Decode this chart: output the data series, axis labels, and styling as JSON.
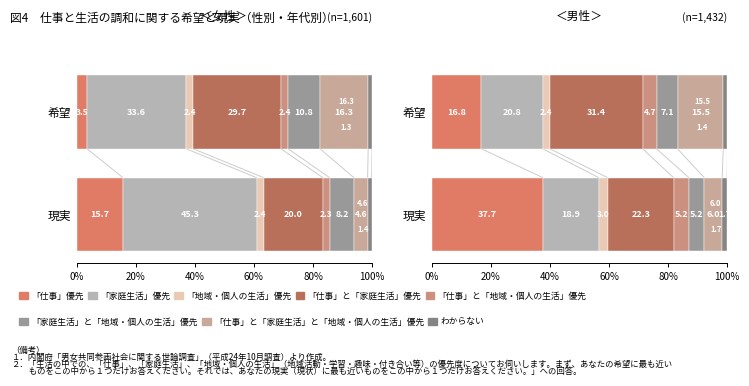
{
  "title": "図4　仕事と生活の調和に関する希望と現実（性別・年代別）",
  "female_title": "＜女性＞",
  "male_title": "＜男性＞",
  "female_n": "(n=1,601)",
  "male_n": "(n=1,432)",
  "rows": [
    "希望",
    "現実"
  ],
  "female_hope": [
    3.5,
    33.6,
    2.4,
    29.7,
    2.4,
    10.8,
    16.3,
    1.3
  ],
  "female_real": [
    15.7,
    45.3,
    2.4,
    20.0,
    2.3,
    8.2,
    4.6,
    1.4
  ],
  "male_hope": [
    16.8,
    20.8,
    2.4,
    31.4,
    4.7,
    7.1,
    15.5,
    1.4
  ],
  "male_real": [
    37.7,
    18.9,
    3.0,
    22.3,
    5.2,
    5.2,
    6.0,
    1.7
  ],
  "colors": [
    "#E07B65",
    "#B5B5B5",
    "#EAC9B5",
    "#B8705A",
    "#CC9080",
    "#999999",
    "#C8A898",
    "#858585"
  ],
  "legend_labels": [
    "「仕事」優先",
    "「家庭生活」優先",
    "「地域・個人の生活」優先",
    "「仕事」と「家庭生活」優先",
    "「仕事」と「地域・個人の生活」優先",
    "「家庭生活」と「地域・個人の生活」優先",
    "「仕事」と「家庭生活」と「地域・個人の生活」優先",
    "わからない"
  ],
  "note1": "（備考）",
  "note2": "１．内閣府「男女共同参画社会に関する世論調査」（平成24年10月調査）より作成。",
  "note3": "２．「生活の中での、「仕事」、「家庭生活」、「地域・個人の生活」（地域活動・学習・趣味・付き合い等）の優先度についてお伺いします。まず、あなたの希望に最も近い",
  "note4": "　　ものをこの中から１つだけお答えください。それでは、あなたの現実（現状）に最も近いものをこの中から１つだけお答えください。」への回答。"
}
